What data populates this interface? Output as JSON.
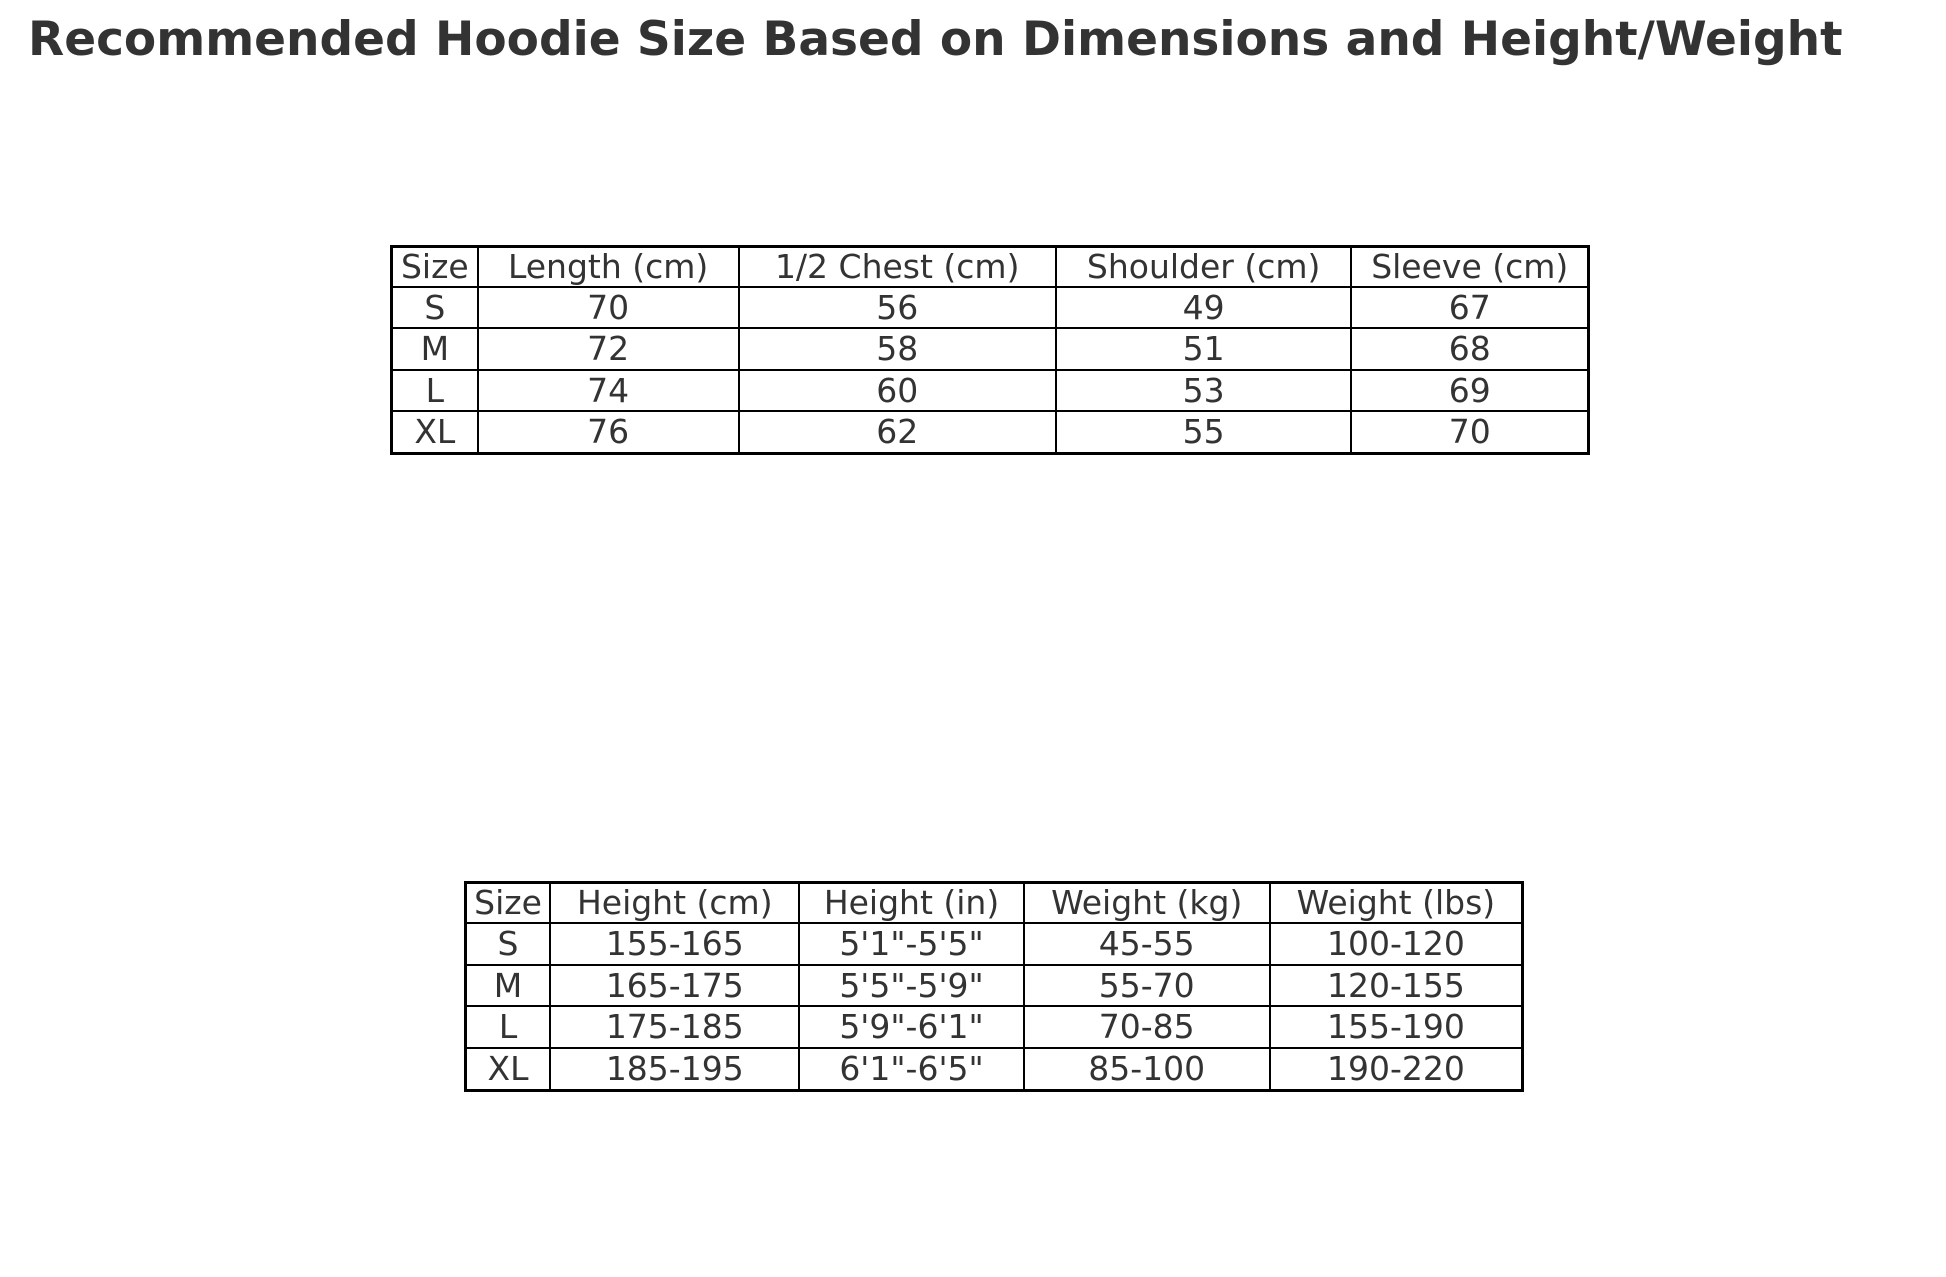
{
  "page": {
    "title": "Recommended Hoodie Size Based on Dimensions and Height/Weight",
    "background_color": "#ffffff",
    "title_color": "#333333",
    "table_border_color": "#000000",
    "table_text_color": "#333333"
  },
  "chart_data": [
    {
      "type": "table",
      "columns": [
        "Size",
        "Length (cm)",
        "1/2 Chest (cm)",
        "Shoulder (cm)",
        "Sleeve (cm)"
      ],
      "rows": [
        [
          "S",
          "70",
          "56",
          "49",
          "67"
        ],
        [
          "M",
          "72",
          "58",
          "51",
          "68"
        ],
        [
          "L",
          "74",
          "60",
          "53",
          "69"
        ],
        [
          "XL",
          "76",
          "62",
          "55",
          "70"
        ]
      ]
    },
    {
      "type": "table",
      "columns": [
        "Size",
        "Height (cm)",
        "Height (in)",
        "Weight (kg)",
        "Weight (lbs)"
      ],
      "rows": [
        [
          "S",
          "155-165",
          "5'1\"-5'5\"",
          "45-55",
          "100-120"
        ],
        [
          "M",
          "165-175",
          "5'5\"-5'9\"",
          "55-70",
          "120-155"
        ],
        [
          "L",
          "175-185",
          "5'9\"-6'1\"",
          "70-85",
          "155-190"
        ],
        [
          "XL",
          "185-195",
          "6'1\"-6'5\"",
          "85-100",
          "190-220"
        ]
      ]
    }
  ]
}
